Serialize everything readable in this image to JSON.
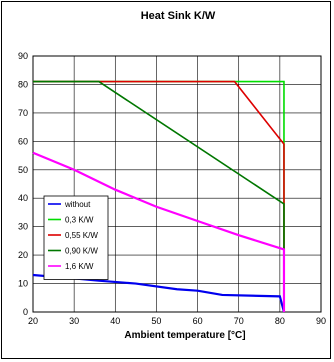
{
  "chart_data": {
    "type": "line",
    "title": "Heat Sink K/W",
    "xlabel": "Ambient temperature [°C]",
    "ylabel": "",
    "xlim": [
      20,
      90
    ],
    "ylim": [
      0,
      90
    ],
    "xticks": [
      20,
      30,
      40,
      50,
      60,
      70,
      80,
      90
    ],
    "yticks": [
      0,
      10,
      20,
      30,
      40,
      50,
      60,
      70,
      80,
      90
    ],
    "grid": true,
    "legend_position": "left-middle",
    "series": [
      {
        "name": "without",
        "color": "#0000ee",
        "points": [
          [
            20,
            13
          ],
          [
            30,
            11.8
          ],
          [
            36,
            11
          ],
          [
            45,
            10
          ],
          [
            55,
            8
          ],
          [
            60,
            7.5
          ],
          [
            66,
            6
          ],
          [
            80,
            5.5
          ],
          [
            81,
            0
          ]
        ]
      },
      {
        "name": "0,3 K/W",
        "color": "#00dd00",
        "points": [
          [
            20,
            81
          ],
          [
            81,
            81
          ],
          [
            81,
            0
          ]
        ]
      },
      {
        "name": "0,55 K/W",
        "color": "#dd0000",
        "points": [
          [
            20,
            81
          ],
          [
            69,
            81
          ],
          [
            81,
            59
          ],
          [
            81,
            0
          ]
        ]
      },
      {
        "name": "0,90 K/W",
        "color": "#007700",
        "points": [
          [
            20,
            81
          ],
          [
            36,
            81
          ],
          [
            81,
            38
          ],
          [
            81,
            0
          ]
        ]
      },
      {
        "name": "1,6 K/W",
        "color": "#ff00ff",
        "points": [
          [
            20,
            56
          ],
          [
            30,
            50
          ],
          [
            40,
            43
          ],
          [
            50,
            37
          ],
          [
            60,
            32
          ],
          [
            70,
            27
          ],
          [
            81,
            22
          ],
          [
            81,
            0
          ]
        ]
      }
    ]
  }
}
